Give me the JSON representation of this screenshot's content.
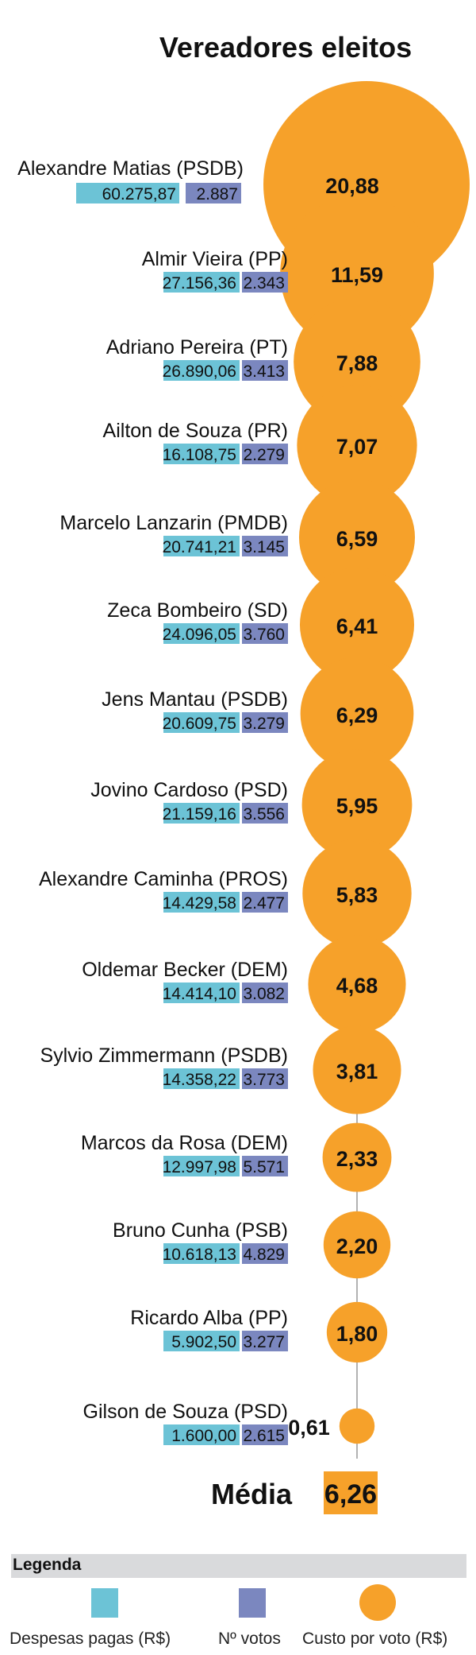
{
  "colors": {
    "despesas": "#6cc3d6",
    "votos": "#7b87bf",
    "custo": "#f6a12a",
    "axis": "#999999",
    "media_box": "#f6a12a"
  },
  "chart_data": {
    "type": "bubble",
    "title": "Vereadores eleitos",
    "rows": [
      {
        "name": "Alexandre Matias (PSDB)",
        "despesas": "60.275,87",
        "votos": "2.887",
        "custo": 20.88,
        "custo_label": "20,88"
      },
      {
        "name": "Almir Vieira (PP)",
        "despesas": "27.156,36",
        "votos": "2.343",
        "custo": 11.59,
        "custo_label": "11,59"
      },
      {
        "name": "Adriano Pereira (PT)",
        "despesas": "26.890,06",
        "votos": "3.413",
        "custo": 7.88,
        "custo_label": "7,88"
      },
      {
        "name": "Ailton de Souza (PR)",
        "despesas": "16.108,75",
        "votos": "2.279",
        "custo": 7.07,
        "custo_label": "7,07"
      },
      {
        "name": "Marcelo Lanzarin (PMDB)",
        "despesas": "20.741,21",
        "votos": "3.145",
        "custo": 6.59,
        "custo_label": "6,59"
      },
      {
        "name": "Zeca Bombeiro (SD)",
        "despesas": "24.096,05",
        "votos": "3.760",
        "custo": 6.41,
        "custo_label": "6,41"
      },
      {
        "name": "Jens Mantau (PSDB)",
        "despesas": "20.609,75",
        "votos": "3.279",
        "custo": 6.29,
        "custo_label": "6,29"
      },
      {
        "name": "Jovino Cardoso (PSD)",
        "despesas": "21.159,16",
        "votos": "3.556",
        "custo": 5.95,
        "custo_label": "5,95"
      },
      {
        "name": "Alexandre Caminha (PROS)",
        "despesas": "14.429,58",
        "votos": "2.477",
        "custo": 5.83,
        "custo_label": "5,83"
      },
      {
        "name": "Oldemar Becker (DEM)",
        "despesas": "14.414,10",
        "votos": "3.082",
        "custo": 4.68,
        "custo_label": "4,68"
      },
      {
        "name": "Sylvio Zimmermann (PSDB)",
        "despesas": "14.358,22",
        "votos": "3.773",
        "custo": 3.81,
        "custo_label": "3,81"
      },
      {
        "name": "Marcos da Rosa (DEM)",
        "despesas": "12.997,98",
        "votos": "5.571",
        "custo": 2.33,
        "custo_label": "2,33"
      },
      {
        "name": "Bruno Cunha (PSB)",
        "despesas": "10.618,13",
        "votos": "4.829",
        "custo": 2.2,
        "custo_label": "2,20"
      },
      {
        "name": "Ricardo Alba (PP)",
        "despesas": "5.902,50",
        "votos": "3.277",
        "custo": 1.8,
        "custo_label": "1,80"
      },
      {
        "name": "Gilson de Souza (PSD)",
        "despesas": "1.600,00",
        "votos": "2.615",
        "custo": 0.61,
        "custo_label": "0,61"
      }
    ],
    "media": {
      "label": "Média",
      "value": 6.26,
      "value_label": "6,26"
    }
  },
  "legend": {
    "title": "Legenda",
    "items": [
      {
        "label": "Despesas pagas (R$)",
        "color_key": "despesas"
      },
      {
        "label": "Nº votos",
        "color_key": "votos"
      },
      {
        "label": "Custo por voto (R$)",
        "color_key": "custo"
      }
    ]
  }
}
